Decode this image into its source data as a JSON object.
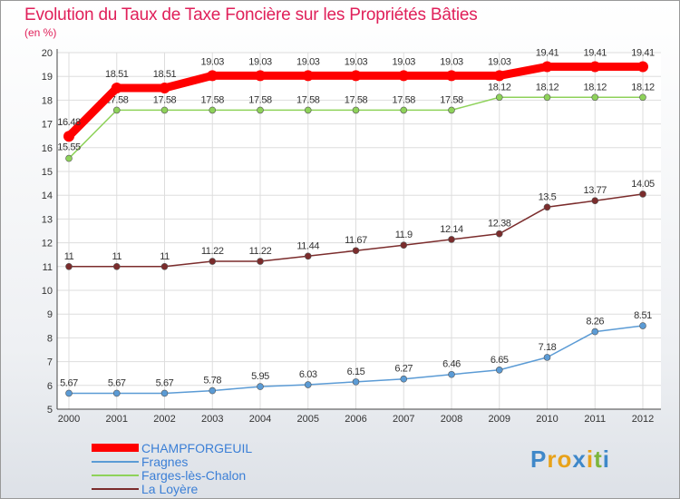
{
  "title": "Evolution du Taux de Taxe Foncière sur les Propriétés Bâties",
  "subtitle": "(en %)",
  "logo": {
    "letters": [
      "P",
      "r",
      "o",
      "x",
      "i",
      "t",
      "i"
    ],
    "colors": [
      "#3f88c9",
      "#e8a21a",
      "#e8a21a",
      "#3f88c9",
      "#e8a21a",
      "#7db53c",
      "#3f88c9"
    ]
  },
  "chart_data": {
    "type": "line",
    "title": "Evolution du Taux de Taxe Foncière sur les Propriétés Bâties",
    "ylabel": "(en %)",
    "xlabel": "",
    "ylim": [
      5,
      20
    ],
    "yticks": [
      "5",
      "6",
      "7",
      "8",
      "9",
      "10",
      "11",
      "12",
      "13",
      "14",
      "15",
      "16",
      "17",
      "18",
      "19",
      "20"
    ],
    "x": [
      "2000",
      "2001",
      "2002",
      "2003",
      "2004",
      "2005",
      "2006",
      "2007",
      "2008",
      "2009",
      "2010",
      "2011",
      "2012"
    ],
    "series": [
      {
        "name": "CHAMPFORGEUIL",
        "color": "#ff0000",
        "values": [
          16.48,
          18.51,
          18.51,
          19.03,
          19.03,
          19.03,
          19.03,
          19.03,
          19.03,
          19.03,
          19.41,
          19.41,
          19.41
        ],
        "labels": [
          "16.48",
          "18.51",
          "18.51",
          "19.03",
          "19.03",
          "19.03",
          "19.03",
          "19.03",
          "19.03",
          "19.03",
          "19.41",
          "19.41",
          "19.41"
        ]
      },
      {
        "name": "Fragnes",
        "color": "#5b9bd5",
        "values": [
          5.67,
          5.67,
          5.67,
          5.78,
          5.95,
          6.03,
          6.15,
          6.27,
          6.46,
          6.65,
          7.18,
          8.26,
          8.51
        ],
        "labels": [
          "5.67",
          "5.67",
          "5.67",
          "5.78",
          "5.95",
          "6.03",
          "6.15",
          "6.27",
          "6.46",
          "6.65",
          "7.18",
          "8.26",
          "8.51"
        ]
      },
      {
        "name": "Farges-lès-Chalon",
        "color": "#8ed25a",
        "values": [
          15.55,
          17.58,
          17.58,
          17.58,
          17.58,
          17.58,
          17.58,
          17.58,
          17.58,
          18.12,
          18.12,
          18.12,
          18.12
        ],
        "labels": [
          "15.55",
          "17.58",
          "17.58",
          "17.58",
          "17.58",
          "17.58",
          "17.58",
          "17.58",
          "17.58",
          "18.12",
          "18.12",
          "18.12",
          "18.12"
        ]
      },
      {
        "name": "La Loyère",
        "color": "#7b2c2c",
        "values": [
          11,
          11,
          11,
          11.22,
          11.22,
          11.44,
          11.67,
          11.9,
          12.14,
          12.38,
          13.5,
          13.77,
          14.05
        ],
        "labels": [
          "11",
          "11",
          "11",
          "11.22",
          "11.22",
          "11.44",
          "11.67",
          "11.9",
          "12.14",
          "12.38",
          "13.5",
          "13.77",
          "14.05"
        ]
      }
    ],
    "grid": true,
    "legend": "bottom-left"
  }
}
